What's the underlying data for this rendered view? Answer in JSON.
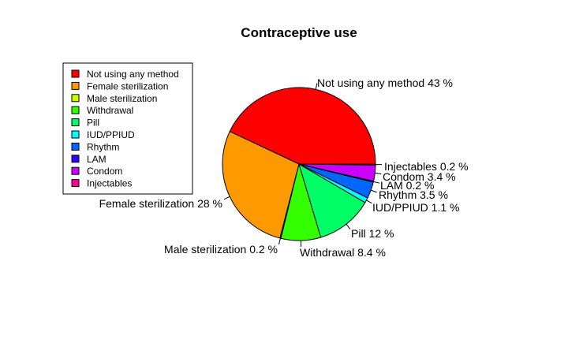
{
  "chart_data": {
    "type": "pie",
    "title": "Contraceptive use",
    "categories": [
      "Not using any method",
      "Female sterilization",
      "Male sterilization",
      "Withdrawal",
      "Pill",
      "IUD/PPIUD",
      "Rhythm",
      "LAM",
      "Condom",
      "Injectables"
    ],
    "values": [
      43,
      28,
      0.2,
      8.4,
      12,
      1.1,
      3.5,
      0.2,
      3.4,
      0.2
    ],
    "slice_labels": [
      "Not using any method 43 %",
      "Female sterilization 28 %",
      "Male sterilization 0.2 %",
      "Withdrawal 8.4 %",
      "Pill 12 %",
      "IUD/PPIUD 1.1 %",
      "Rhythm 3.5 %",
      "LAM 0.2 %",
      "Condom 3.4 %",
      "Injectables 0.2 %"
    ],
    "colors": [
      "#ff0000",
      "#ff9900",
      "#ccff00",
      "#33ff00",
      "#00ff66",
      "#00ffff",
      "#0066ff",
      "#3300ff",
      "#cc00ff",
      "#ff0099"
    ],
    "legend": "left",
    "start_angle_deg": 0,
    "direction": "counterclockwise"
  }
}
